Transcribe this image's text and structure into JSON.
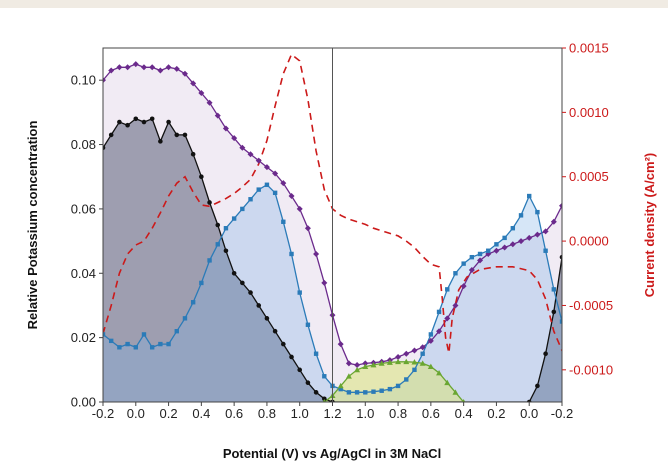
{
  "chart_data": {
    "type": "line",
    "xlabel": "Potential (V) vs Ag/AgCl in 3M NaCl",
    "ylabel": "Relative Potassium concentration",
    "ylabel_right": "Current density (A/cm²)",
    "x_tick_labels": [
      "-0.2",
      "0.0",
      "0.2",
      "0.4",
      "0.6",
      "0.8",
      "1.0",
      "1.2",
      "1.0",
      "0.8",
      "0.6",
      "0.4",
      "0.2",
      "0.0",
      "-0.2"
    ],
    "x_scan": "cyclic sweep -0.2 V → 1.2 V → -0.2 V; values below are scan position t in 0–2.8 (V = t − 0.2 on forward, 2.6 − t on return)",
    "ylim": [
      0,
      0.11
    ],
    "ylim_right": [
      -0.00125,
      0.0015
    ],
    "y_ticks": [
      "0.00",
      "0.02",
      "0.04",
      "0.06",
      "0.08",
      "0.10"
    ],
    "y_ticks_right": [
      "0.0015",
      "0.0010",
      "0.0005",
      "0.0000",
      "-0.0005",
      "-0.0010"
    ],
    "vertical_line_at": 1.4,
    "colors": {
      "purple": "#6b2a8c",
      "black": "#111111",
      "blue": "#2b7bb8",
      "green": "#6aa631",
      "current": "#cc1a1a",
      "accent_bar": "#f0ebe3"
    },
    "series": [
      {
        "color": "purple",
        "marker": "diamond",
        "points": [
          [
            0,
            0.1
          ],
          [
            0.05,
            0.103
          ],
          [
            0.1,
            0.104
          ],
          [
            0.15,
            0.104
          ],
          [
            0.2,
            0.105
          ],
          [
            0.25,
            0.104
          ],
          [
            0.3,
            0.104
          ],
          [
            0.35,
            0.103
          ],
          [
            0.4,
            0.104
          ],
          [
            0.45,
            0.1035
          ],
          [
            0.5,
            0.102
          ],
          [
            0.55,
            0.099
          ],
          [
            0.6,
            0.096
          ],
          [
            0.65,
            0.093
          ],
          [
            0.7,
            0.089
          ],
          [
            0.75,
            0.085
          ],
          [
            0.8,
            0.082
          ],
          [
            0.85,
            0.079
          ],
          [
            0.9,
            0.077
          ],
          [
            0.95,
            0.075
          ],
          [
            1.0,
            0.073
          ],
          [
            1.05,
            0.071
          ],
          [
            1.1,
            0.068
          ],
          [
            1.15,
            0.064
          ],
          [
            1.2,
            0.06
          ],
          [
            1.25,
            0.054
          ],
          [
            1.3,
            0.046
          ],
          [
            1.35,
            0.037
          ],
          [
            1.4,
            0.027
          ],
          [
            1.45,
            0.018
          ],
          [
            1.5,
            0.012
          ],
          [
            1.55,
            0.0115
          ],
          [
            1.6,
            0.012
          ],
          [
            1.65,
            0.0122
          ],
          [
            1.7,
            0.0125
          ],
          [
            1.75,
            0.013
          ],
          [
            1.8,
            0.014
          ],
          [
            1.85,
            0.015
          ],
          [
            1.9,
            0.016
          ],
          [
            1.95,
            0.017
          ],
          [
            2.0,
            0.019
          ],
          [
            2.05,
            0.022
          ],
          [
            2.1,
            0.026
          ],
          [
            2.15,
            0.03
          ],
          [
            2.2,
            0.036
          ],
          [
            2.25,
            0.041
          ],
          [
            2.3,
            0.044
          ],
          [
            2.35,
            0.046
          ],
          [
            2.4,
            0.047
          ],
          [
            2.45,
            0.048
          ],
          [
            2.5,
            0.049
          ],
          [
            2.55,
            0.05
          ],
          [
            2.6,
            0.051
          ],
          [
            2.65,
            0.052
          ],
          [
            2.7,
            0.053
          ],
          [
            2.75,
            0.056
          ],
          [
            2.8,
            0.061
          ],
          [
            2.85,
            0.069
          ],
          [
            2.9,
            0.077
          ],
          [
            2.95,
            0.085
          ],
          [
            3.0,
            0.09
          ],
          [
            3.05,
            0.092
          ]
        ]
      },
      {
        "color": "black",
        "marker": "circle",
        "points": [
          [
            0,
            0.079
          ],
          [
            0.05,
            0.083
          ],
          [
            0.1,
            0.087
          ],
          [
            0.15,
            0.086
          ],
          [
            0.2,
            0.088
          ],
          [
            0.25,
            0.087
          ],
          [
            0.3,
            0.088
          ],
          [
            0.35,
            0.081
          ],
          [
            0.4,
            0.087
          ],
          [
            0.45,
            0.083
          ],
          [
            0.5,
            0.083
          ],
          [
            0.55,
            0.077
          ],
          [
            0.6,
            0.07
          ],
          [
            0.65,
            0.062
          ],
          [
            0.7,
            0.055
          ],
          [
            0.75,
            0.047
          ],
          [
            0.8,
            0.04
          ],
          [
            0.85,
            0.037
          ],
          [
            0.9,
            0.034
          ],
          [
            0.95,
            0.03
          ],
          [
            1.0,
            0.026
          ],
          [
            1.05,
            0.022
          ],
          [
            1.1,
            0.018
          ],
          [
            1.15,
            0.014
          ],
          [
            1.2,
            0.01
          ],
          [
            1.25,
            0.006
          ],
          [
            1.3,
            0.003
          ],
          [
            1.35,
            0.001
          ],
          [
            1.4,
            0.0
          ],
          [
            2.6,
            0.0
          ],
          [
            2.65,
            0.005
          ],
          [
            2.7,
            0.015
          ],
          [
            2.75,
            0.028
          ],
          [
            2.8,
            0.045
          ],
          [
            2.85,
            0.06
          ],
          [
            2.9,
            0.07
          ],
          [
            2.95,
            0.073
          ],
          [
            3.0,
            0.075
          ]
        ]
      },
      {
        "color": "blue",
        "marker": "square",
        "points": [
          [
            0,
            0.021
          ],
          [
            0.05,
            0.019
          ],
          [
            0.1,
            0.017
          ],
          [
            0.15,
            0.018
          ],
          [
            0.2,
            0.017
          ],
          [
            0.25,
            0.021
          ],
          [
            0.3,
            0.017
          ],
          [
            0.35,
            0.018
          ],
          [
            0.4,
            0.018
          ],
          [
            0.45,
            0.022
          ],
          [
            0.5,
            0.026
          ],
          [
            0.55,
            0.031
          ],
          [
            0.6,
            0.037
          ],
          [
            0.65,
            0.044
          ],
          [
            0.7,
            0.049
          ],
          [
            0.75,
            0.054
          ],
          [
            0.8,
            0.057
          ],
          [
            0.85,
            0.06
          ],
          [
            0.9,
            0.063
          ],
          [
            0.95,
            0.066
          ],
          [
            1.0,
            0.0675
          ],
          [
            1.05,
            0.065
          ],
          [
            1.1,
            0.056
          ],
          [
            1.15,
            0.046
          ],
          [
            1.2,
            0.034
          ],
          [
            1.25,
            0.024
          ],
          [
            1.3,
            0.015
          ],
          [
            1.35,
            0.008
          ],
          [
            1.4,
            0.005
          ],
          [
            1.45,
            0.004
          ],
          [
            1.5,
            0.003
          ],
          [
            1.55,
            0.003
          ],
          [
            1.6,
            0.003
          ],
          [
            1.65,
            0.0032
          ],
          [
            1.7,
            0.0035
          ],
          [
            1.75,
            0.004
          ],
          [
            1.8,
            0.005
          ],
          [
            1.85,
            0.007
          ],
          [
            1.9,
            0.01
          ],
          [
            1.95,
            0.015
          ],
          [
            2.0,
            0.021
          ],
          [
            2.05,
            0.028
          ],
          [
            2.1,
            0.035
          ],
          [
            2.15,
            0.04
          ],
          [
            2.2,
            0.043
          ],
          [
            2.25,
            0.045
          ],
          [
            2.3,
            0.046
          ],
          [
            2.35,
            0.047
          ],
          [
            2.4,
            0.049
          ],
          [
            2.45,
            0.051
          ],
          [
            2.5,
            0.054
          ],
          [
            2.55,
            0.058
          ],
          [
            2.6,
            0.064
          ],
          [
            2.65,
            0.059
          ],
          [
            2.7,
            0.047
          ],
          [
            2.75,
            0.035
          ],
          [
            2.8,
            0.025
          ],
          [
            2.85,
            0.018
          ],
          [
            2.9,
            0.015
          ]
        ]
      },
      {
        "color": "green",
        "marker": "triangle",
        "points": [
          [
            1.35,
            0.0
          ],
          [
            1.4,
            0.002
          ],
          [
            1.45,
            0.005
          ],
          [
            1.5,
            0.008
          ],
          [
            1.55,
            0.01
          ],
          [
            1.6,
            0.011
          ],
          [
            1.65,
            0.0115
          ],
          [
            1.7,
            0.012
          ],
          [
            1.75,
            0.0123
          ],
          [
            1.8,
            0.0125
          ],
          [
            1.85,
            0.0125
          ],
          [
            1.9,
            0.0124
          ],
          [
            1.95,
            0.012
          ],
          [
            2.0,
            0.011
          ],
          [
            2.05,
            0.009
          ],
          [
            2.1,
            0.006
          ],
          [
            2.15,
            0.003
          ],
          [
            2.2,
            0.0
          ]
        ]
      },
      {
        "color": "current",
        "marker": "none",
        "dashed": true,
        "axis": "right",
        "points": [
          [
            0,
            -0.00072
          ],
          [
            0.05,
            -0.0005
          ],
          [
            0.1,
            -0.00025
          ],
          [
            0.15,
            -0.0001
          ],
          [
            0.2,
            -3e-05
          ],
          [
            0.25,
            0.0
          ],
          [
            0.3,
            0.0001
          ],
          [
            0.35,
            0.00022
          ],
          [
            0.4,
            0.00035
          ],
          [
            0.45,
            0.00045
          ],
          [
            0.5,
            0.0005
          ],
          [
            0.55,
            0.00038
          ],
          [
            0.6,
            0.00028
          ],
          [
            0.65,
            0.00027
          ],
          [
            0.7,
            0.0003
          ],
          [
            0.75,
            0.00033
          ],
          [
            0.8,
            0.00037
          ],
          [
            0.85,
            0.00042
          ],
          [
            0.9,
            0.00048
          ],
          [
            0.95,
            0.0006
          ],
          [
            1.0,
            0.00078
          ],
          [
            1.05,
            0.00105
          ],
          [
            1.1,
            0.0013
          ],
          [
            1.15,
            0.00145
          ],
          [
            1.2,
            0.0014
          ],
          [
            1.25,
            0.0011
          ],
          [
            1.3,
            0.0007
          ],
          [
            1.35,
            0.0004
          ],
          [
            1.4,
            0.00025
          ],
          [
            1.45,
            0.0002
          ],
          [
            1.5,
            0.00017
          ],
          [
            1.55,
            0.00015
          ],
          [
            1.6,
            0.00013
          ],
          [
            1.65,
            0.0001
          ],
          [
            1.7,
            8e-05
          ],
          [
            1.75,
            6e-05
          ],
          [
            1.8,
            4e-05
          ],
          [
            1.85,
            0.0
          ],
          [
            1.9,
            -5e-05
          ],
          [
            1.95,
            -0.00012
          ],
          [
            2.0,
            -0.00018
          ],
          [
            2.05,
            -0.0002
          ],
          [
            2.07,
            -0.00045
          ],
          [
            2.09,
            -0.00075
          ],
          [
            2.11,
            -0.00087
          ],
          [
            2.13,
            -0.0006
          ],
          [
            2.17,
            -0.00038
          ],
          [
            2.22,
            -0.00028
          ],
          [
            2.3,
            -0.00022
          ],
          [
            2.4,
            -0.0002
          ],
          [
            2.5,
            -0.0002
          ],
          [
            2.6,
            -0.00023
          ],
          [
            2.65,
            -0.0003
          ],
          [
            2.7,
            -0.00045
          ],
          [
            2.75,
            -0.0007
          ],
          [
            2.8,
            -0.00085
          ],
          [
            2.85,
            -0.0008
          ],
          [
            2.9,
            -0.0007
          ]
        ]
      }
    ]
  }
}
